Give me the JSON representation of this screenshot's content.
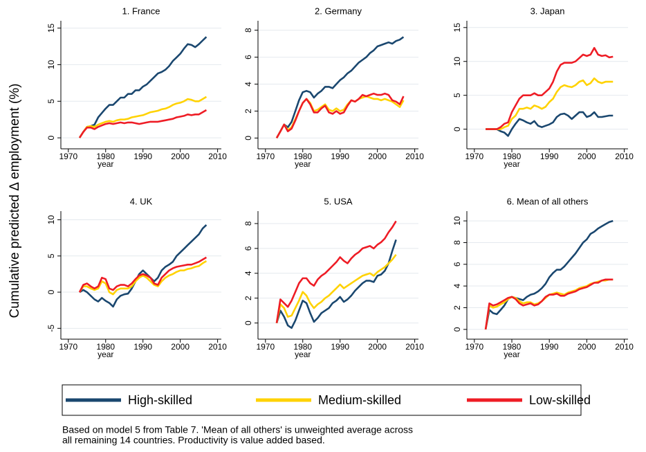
{
  "y_label": "Cumulative predicted Δ employment (%)",
  "note": [
    "Based on model 5 from Table 7. 'Mean of all others' is unweighted average across",
    "all remaining 14 countries. Productivity is value added based."
  ],
  "chart_data": [
    {
      "type": "line",
      "title": "1. France",
      "xlabel": "year",
      "grid": true,
      "x": [
        1973,
        1974,
        1975,
        1976,
        1977,
        1978,
        1979,
        1980,
        1981,
        1982,
        1983,
        1984,
        1985,
        1986,
        1987,
        1988,
        1989,
        1990,
        1991,
        1992,
        1993,
        1994,
        1995,
        1996,
        1997,
        1998,
        1999,
        2000,
        2001,
        2002,
        2003,
        2004,
        2005,
        2006,
        2007
      ],
      "xlim": [
        1968,
        2011
      ],
      "xticks": [
        1970,
        1980,
        1990,
        2000,
        2010
      ],
      "ylim": [
        -1.5,
        16
      ],
      "yticks": [
        0,
        5,
        10,
        15
      ],
      "series": [
        {
          "name": "High-skilled",
          "color": "#1a476f",
          "values": [
            0,
            0.8,
            1.5,
            1.6,
            1.8,
            2.8,
            3.4,
            4.0,
            4.5,
            4.5,
            5.0,
            5.5,
            5.5,
            6.0,
            6.0,
            6.5,
            6.5,
            7.0,
            7.3,
            7.8,
            8.3,
            8.8,
            9.0,
            9.3,
            9.8,
            10.5,
            11.0,
            11.5,
            12.2,
            12.8,
            12.7,
            12.4,
            12.8,
            13.3,
            13.8
          ]
        },
        {
          "name": "Medium-skilled",
          "color": "#ffd200",
          "values": [
            0,
            0.8,
            1.5,
            1.6,
            1.5,
            1.8,
            2.0,
            2.2,
            2.3,
            2.2,
            2.4,
            2.5,
            2.5,
            2.6,
            2.8,
            2.9,
            3.0,
            3.1,
            3.3,
            3.5,
            3.6,
            3.7,
            3.9,
            4.0,
            4.2,
            4.5,
            4.7,
            4.8,
            5.0,
            5.3,
            5.2,
            5.0,
            5.0,
            5.3,
            5.6
          ]
        },
        {
          "name": "Low-skilled",
          "color": "#ee1c25",
          "values": [
            0,
            0.8,
            1.4,
            1.4,
            1.2,
            1.5,
            1.7,
            1.9,
            2.0,
            1.9,
            2.0,
            2.1,
            2.0,
            2.1,
            2.1,
            2.0,
            1.9,
            2.0,
            2.1,
            2.2,
            2.2,
            2.2,
            2.3,
            2.4,
            2.5,
            2.6,
            2.8,
            2.9,
            3.0,
            3.2,
            3.1,
            3.2,
            3.2,
            3.5,
            3.8
          ]
        }
      ]
    },
    {
      "type": "line",
      "title": "2. Germany",
      "xlabel": "year",
      "grid": true,
      "x": [
        1973,
        1974,
        1975,
        1976,
        1977,
        1978,
        1979,
        1980,
        1981,
        1982,
        1983,
        1984,
        1985,
        1986,
        1987,
        1988,
        1989,
        1990,
        1991,
        1992,
        1993,
        1994,
        1995,
        1996,
        1997,
        1998,
        1999,
        2000,
        2001,
        2002,
        2003,
        2004,
        2005,
        2006,
        2007
      ],
      "xlim": [
        1968,
        2011
      ],
      "xticks": [
        1970,
        1980,
        1990,
        2000,
        2010
      ],
      "ylim": [
        -0.8,
        8.7
      ],
      "yticks": [
        0,
        2,
        4,
        6,
        8
      ],
      "series": [
        {
          "name": "High-skilled",
          "color": "#1a476f",
          "values": [
            0,
            0.5,
            1.0,
            0.8,
            1.2,
            2.0,
            2.8,
            3.4,
            3.5,
            3.4,
            3.0,
            3.3,
            3.5,
            3.8,
            3.8,
            3.7,
            4.0,
            4.3,
            4.5,
            4.8,
            5.0,
            5.3,
            5.6,
            5.8,
            6.0,
            6.3,
            6.5,
            6.8,
            6.9,
            7.0,
            7.1,
            7.0,
            7.2,
            7.3,
            7.5
          ]
        },
        {
          "name": "Medium-skilled",
          "color": "#ffd200",
          "values": [
            0,
            0.5,
            1.0,
            0.6,
            0.8,
            1.4,
            2.0,
            2.6,
            2.9,
            2.6,
            2.0,
            2.1,
            2.3,
            2.5,
            2.1,
            2.0,
            2.2,
            2.0,
            2.1,
            2.5,
            2.8,
            2.7,
            2.9,
            3.0,
            3.1,
            3.0,
            2.9,
            2.9,
            2.8,
            2.9,
            2.8,
            2.7,
            2.5,
            2.3,
            2.8
          ]
        },
        {
          "name": "Low-skilled",
          "color": "#ee1c25",
          "values": [
            0,
            0.5,
            1.0,
            0.5,
            0.7,
            1.3,
            2.0,
            2.6,
            2.9,
            2.5,
            1.9,
            1.9,
            2.2,
            2.4,
            1.9,
            1.8,
            2.0,
            1.8,
            1.9,
            2.4,
            2.8,
            2.7,
            2.9,
            3.2,
            3.1,
            3.2,
            3.3,
            3.2,
            3.2,
            3.3,
            3.2,
            2.8,
            2.7,
            2.5,
            3.1
          ]
        }
      ]
    },
    {
      "type": "line",
      "title": "3. Japan",
      "xlabel": "year",
      "grid": true,
      "x": [
        1973,
        1974,
        1975,
        1976,
        1977,
        1978,
        1979,
        1980,
        1981,
        1982,
        1983,
        1984,
        1985,
        1986,
        1987,
        1988,
        1989,
        1990,
        1991,
        1992,
        1993,
        1994,
        1995,
        1996,
        1997,
        1998,
        1999,
        2000,
        2001,
        2002,
        2003,
        2004,
        2005,
        2006,
        2007
      ],
      "xlim": [
        1968,
        2011
      ],
      "xticks": [
        1970,
        1980,
        1990,
        2000,
        2010
      ],
      "ylim": [
        -2.9,
        16
      ],
      "yticks": [
        0,
        5,
        10,
        15
      ],
      "series": [
        {
          "name": "High-skilled",
          "color": "#1a476f",
          "values": [
            0,
            0,
            0,
            0,
            -0.3,
            -0.5,
            -1.0,
            0.0,
            0.8,
            1.5,
            1.3,
            1.0,
            0.8,
            1.2,
            0.5,
            0.3,
            0.5,
            0.7,
            1.0,
            1.8,
            2.2,
            2.3,
            2.0,
            1.5,
            2.0,
            2.5,
            2.5,
            1.8,
            2.0,
            2.5,
            1.8,
            1.8,
            1.9,
            2.0,
            2.0
          ]
        },
        {
          "name": "Medium-skilled",
          "color": "#ffd200",
          "values": [
            0,
            0,
            0,
            0,
            0,
            0.3,
            0.5,
            1.5,
            2.0,
            3.0,
            3.0,
            3.2,
            3.0,
            3.5,
            3.3,
            3.0,
            3.3,
            4.0,
            4.5,
            5.5,
            6.2,
            6.5,
            6.3,
            6.2,
            6.5,
            7.0,
            7.2,
            6.5,
            6.8,
            7.5,
            7.0,
            6.8,
            7.0,
            7.0,
            7.0
          ]
        },
        {
          "name": "Low-skilled",
          "color": "#ee1c25",
          "values": [
            0,
            0,
            0,
            0,
            0.3,
            0.8,
            1.0,
            2.5,
            3.5,
            4.5,
            5.0,
            5.0,
            5.0,
            5.3,
            5.0,
            5.0,
            5.5,
            6.0,
            7.0,
            8.5,
            9.5,
            9.8,
            9.8,
            9.8,
            10.0,
            10.5,
            11.0,
            10.8,
            11.0,
            12.0,
            11.0,
            10.8,
            10.9,
            10.6,
            10.7
          ]
        }
      ]
    },
    {
      "type": "line",
      "title": "4. UK",
      "xlabel": "year",
      "grid": true,
      "x": [
        1973,
        1974,
        1975,
        1976,
        1977,
        1978,
        1979,
        1980,
        1981,
        1982,
        1983,
        1984,
        1985,
        1986,
        1987,
        1988,
        1989,
        1990,
        1991,
        1992,
        1993,
        1994,
        1995,
        1996,
        1997,
        1998,
        1999,
        2000,
        2001,
        2002,
        2003,
        2004,
        2005,
        2006,
        2007
      ],
      "xlim": [
        1968,
        2011
      ],
      "xticks": [
        1970,
        1980,
        1990,
        2000,
        2010
      ],
      "ylim": [
        -6.5,
        11.2
      ],
      "yticks": [
        -5,
        0,
        5,
        10
      ],
      "series": [
        {
          "name": "High-skilled",
          "color": "#1a476f",
          "values": [
            0,
            0.3,
            0,
            -0.5,
            -1.0,
            -1.3,
            -0.8,
            -1.2,
            -1.5,
            -2.0,
            -1.0,
            -0.5,
            -0.3,
            -0.2,
            0.5,
            1.5,
            2.5,
            3.0,
            2.5,
            2.0,
            1.5,
            2.0,
            3.0,
            3.5,
            3.8,
            4.2,
            5.0,
            5.5,
            6.0,
            6.5,
            7.0,
            7.5,
            8.0,
            8.8,
            9.3
          ]
        },
        {
          "name": "Medium-skilled",
          "color": "#ffd200",
          "values": [
            0,
            0.8,
            0.8,
            0.5,
            0.3,
            0.5,
            1.5,
            1.2,
            0,
            -0.3,
            0.3,
            0.5,
            0.5,
            0.5,
            0.8,
            1.5,
            2.0,
            2.3,
            2.0,
            1.5,
            1.0,
            0.8,
            1.5,
            2.0,
            2.3,
            2.5,
            2.8,
            3.0,
            3.0,
            3.2,
            3.3,
            3.5,
            3.6,
            4.0,
            4.3
          ]
        },
        {
          "name": "Low-skilled",
          "color": "#ee1c25",
          "values": [
            0,
            1.0,
            1.2,
            0.8,
            0.5,
            0.8,
            2.0,
            1.8,
            0.5,
            0.3,
            0.8,
            1.0,
            1.0,
            0.8,
            1.2,
            1.8,
            2.3,
            2.5,
            2.3,
            2.0,
            1.2,
            1.0,
            2.0,
            2.5,
            3.0,
            3.3,
            3.5,
            3.6,
            3.7,
            3.8,
            3.8,
            4.0,
            4.2,
            4.5,
            4.8
          ]
        }
      ]
    },
    {
      "type": "line",
      "title": "5. USA",
      "xlabel": "year",
      "grid": true,
      "x": [
        1973,
        1974,
        1975,
        1976,
        1977,
        1978,
        1979,
        1980,
        1981,
        1982,
        1983,
        1984,
        1985,
        1986,
        1987,
        1988,
        1989,
        1990,
        1991,
        1992,
        1993,
        1994,
        1995,
        1996,
        1997,
        1998,
        1999,
        2000,
        2001,
        2002,
        2003,
        2004,
        2005,
        2006,
        2007
      ],
      "xlim": [
        1968,
        2011
      ],
      "xticks": [
        1970,
        1980,
        1990,
        2000,
        2010
      ],
      "ylim": [
        -1.3,
        9
      ],
      "yticks": [
        0,
        2,
        4,
        6,
        8
      ],
      "series": [
        {
          "name": "High-skilled",
          "color": "#1a476f",
          "values": [
            0,
            1.0,
            0.5,
            -0.2,
            -0.4,
            0.2,
            1.0,
            1.8,
            1.6,
            0.8,
            0.1,
            0.4,
            0.8,
            1.0,
            1.2,
            1.6,
            1.8,
            2.1,
            1.7,
            1.9,
            2.2,
            2.6,
            2.9,
            3.2,
            3.4,
            3.4,
            3.3,
            3.8,
            3.9,
            4.2,
            4.8,
            5.8,
            6.7,
            null,
            null
          ]
        },
        {
          "name": "Medium-skilled",
          "color": "#ffd200",
          "values": [
            0,
            1.5,
            1.2,
            0.5,
            0.6,
            1.2,
            1.8,
            2.5,
            2.2,
            1.6,
            1.2,
            1.5,
            1.7,
            2.0,
            2.2,
            2.5,
            2.8,
            3.1,
            2.8,
            3.0,
            3.2,
            3.4,
            3.6,
            3.8,
            3.9,
            4.0,
            3.8,
            4.1,
            4.3,
            4.5,
            4.8,
            5.1,
            5.5,
            null,
            null
          ]
        },
        {
          "name": "Low-skilled",
          "color": "#ee1c25",
          "values": [
            0,
            1.9,
            1.6,
            1.3,
            1.8,
            2.5,
            3.2,
            3.6,
            3.6,
            3.2,
            3.0,
            3.5,
            3.8,
            4.0,
            4.3,
            4.6,
            4.9,
            5.3,
            5.0,
            4.8,
            5.2,
            5.5,
            5.7,
            6.0,
            6.1,
            6.2,
            6.0,
            6.3,
            6.5,
            6.8,
            7.3,
            7.7,
            8.2,
            null,
            null
          ]
        }
      ]
    },
    {
      "type": "line",
      "title": "6. Mean of all others",
      "xlabel": "year",
      "grid": true,
      "x": [
        1973,
        1974,
        1975,
        1976,
        1977,
        1978,
        1979,
        1980,
        1981,
        1982,
        1983,
        1984,
        1985,
        1986,
        1987,
        1988,
        1989,
        1990,
        1991,
        1992,
        1993,
        1994,
        1995,
        1996,
        1997,
        1998,
        1999,
        2000,
        2001,
        2002,
        2003,
        2004,
        2005,
        2006,
        2007
      ],
      "xlim": [
        1968,
        2011
      ],
      "xticks": [
        1970,
        1980,
        1990,
        2000,
        2010
      ],
      "ylim": [
        -0.9,
        10.9
      ],
      "yticks": [
        0,
        2,
        4,
        6,
        8,
        10
      ],
      "series": [
        {
          "name": "High-skilled",
          "color": "#1a476f",
          "values": [
            0,
            1.8,
            1.5,
            1.4,
            1.8,
            2.2,
            2.8,
            3.0,
            2.9,
            2.8,
            2.7,
            3.0,
            3.2,
            3.3,
            3.5,
            3.8,
            4.2,
            4.8,
            5.2,
            5.5,
            5.5,
            5.8,
            6.2,
            6.6,
            7.0,
            7.5,
            8.0,
            8.3,
            8.8,
            9.0,
            9.3,
            9.5,
            9.7,
            9.9,
            10.0
          ]
        },
        {
          "name": "Medium-skilled",
          "color": "#ffd200",
          "values": [
            0,
            2.2,
            2.0,
            2.1,
            2.3,
            2.5,
            2.8,
            3.0,
            2.9,
            2.6,
            2.4,
            2.5,
            2.5,
            2.3,
            2.4,
            2.6,
            2.9,
            3.2,
            3.3,
            3.4,
            3.3,
            3.2,
            3.4,
            3.5,
            3.6,
            3.8,
            3.9,
            4.0,
            4.2,
            4.3,
            4.4,
            4.5,
            4.5,
            4.6,
            4.6
          ]
        },
        {
          "name": "Low-skilled",
          "color": "#ee1c25",
          "values": [
            0,
            2.4,
            2.2,
            2.3,
            2.5,
            2.7,
            2.9,
            3.0,
            2.8,
            2.4,
            2.2,
            2.3,
            2.4,
            2.2,
            2.3,
            2.6,
            3.0,
            3.2,
            3.2,
            3.3,
            3.1,
            3.1,
            3.3,
            3.4,
            3.5,
            3.7,
            3.8,
            3.9,
            4.1,
            4.3,
            4.3,
            4.5,
            4.6,
            4.6,
            4.6
          ]
        }
      ]
    }
  ]
}
